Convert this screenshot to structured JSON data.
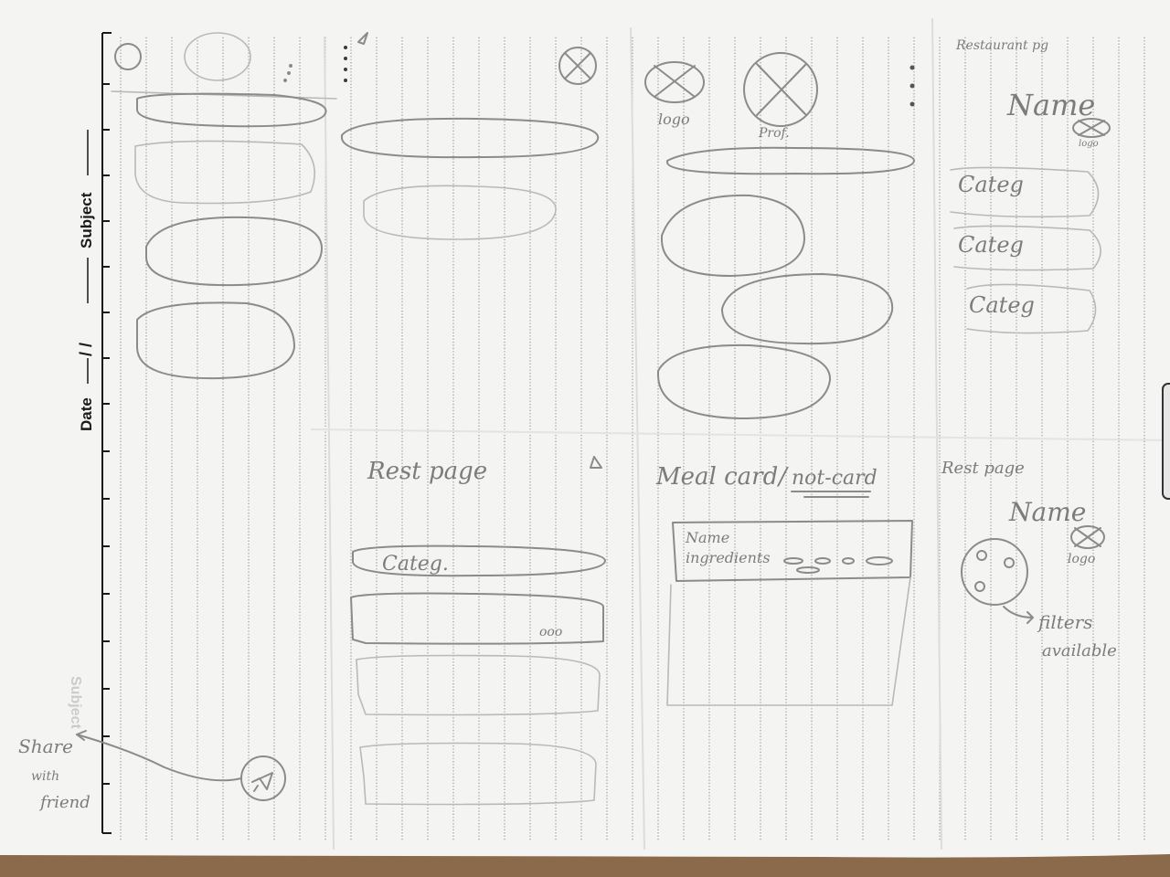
{
  "colors": {
    "table": "#8a6a4a",
    "paper": "#f4f4f2",
    "rule_line": "#3a3a3a",
    "pencil": "#8b8b8b",
    "print_ink": "#1a1a1a"
  },
  "notebook": {
    "date_label": "Date",
    "date_slashes": "/ /",
    "subject_label": "Subject"
  },
  "sketch_home": {
    "share_annotation": [
      "Share",
      "with",
      "friend"
    ]
  },
  "sketch_restaurant_list": {
    "title": "Rest page",
    "category_label": "Categ.",
    "dots": "ooo"
  },
  "sketch_profile": {
    "logo_label": "logo",
    "profile_label": "Prof."
  },
  "sketch_meal_card": {
    "title": "Meal card",
    "separator": "/",
    "alt_title": "not-card",
    "card_name": "Name",
    "card_ingredients": "ingredients"
  },
  "sketch_restaurant_page": {
    "title": "Restaurant pg",
    "name": "Name",
    "logo": "logo",
    "categories": [
      "Categ",
      "Categ",
      "Categ"
    ]
  },
  "sketch_rest_page_filters": {
    "title": "Rest page",
    "name": "Name",
    "logo": "logo",
    "filters_note": [
      "filters",
      "available"
    ]
  }
}
